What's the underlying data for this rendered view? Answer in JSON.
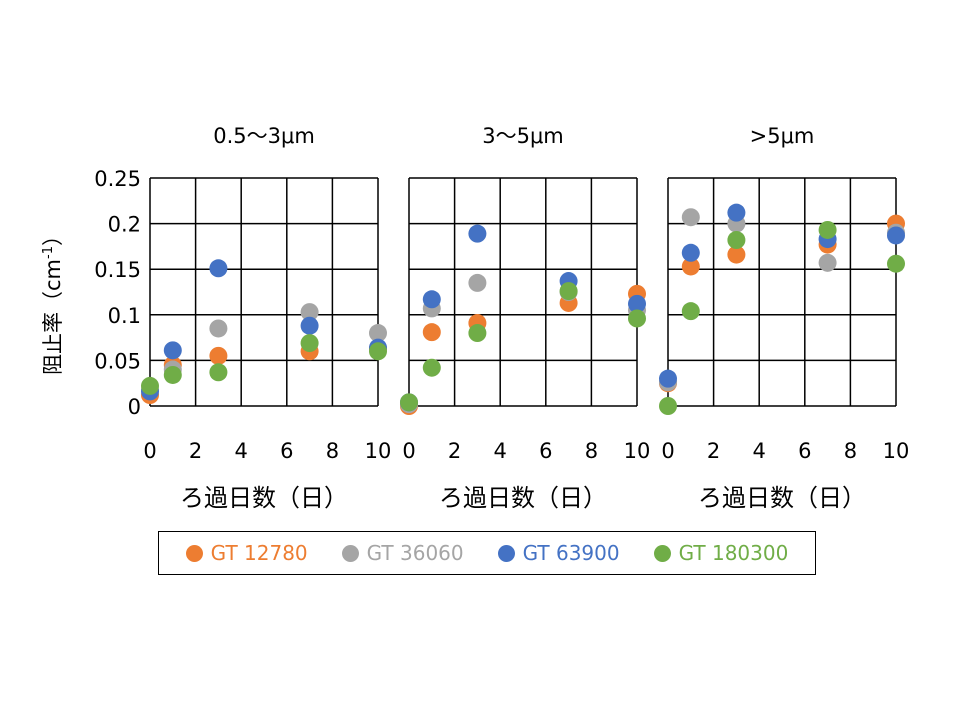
{
  "chart_data": {
    "type": "scatter",
    "ylabel": "阻止率（cm",
    "ylabel_sup": "-1",
    "ylabel_close": "）",
    "ylim": [
      0,
      0.25
    ],
    "yticks": [
      "0",
      "0.05",
      "0.1",
      "0.15",
      "0.2",
      "0.25"
    ],
    "grid": true,
    "legend_position": "bottom",
    "series_meta": [
      {
        "name": "GT 12780",
        "color": "#ED7D31"
      },
      {
        "name": "GT 36060",
        "color": "#A5A5A5"
      },
      {
        "name": "GT 63900",
        "color": "#4472C4"
      },
      {
        "name": "GT 180300",
        "color": "#70AD47"
      }
    ],
    "panels": [
      {
        "title": "0.5～3μm",
        "xlabel": "ろ過日数（日）",
        "xlim": [
          0,
          10
        ],
        "xticks": [
          "0",
          "2",
          "4",
          "6",
          "8",
          "10"
        ],
        "series": [
          {
            "name": "GT 12780",
            "x": [
              0,
              1,
              3,
              7,
              10
            ],
            "y": [
              0.012,
              0.045,
              0.055,
              0.06,
              0.063
            ]
          },
          {
            "name": "GT 36060",
            "x": [
              0,
              1,
              3,
              7,
              10
            ],
            "y": [
              0.018,
              0.04,
              0.085,
              0.103,
              0.08
            ]
          },
          {
            "name": "GT 63900",
            "x": [
              0,
              1,
              3,
              7,
              10
            ],
            "y": [
              0.016,
              0.061,
              0.151,
              0.088,
              0.064
            ]
          },
          {
            "name": "GT 180300",
            "x": [
              0,
              1,
              3,
              7,
              10
            ],
            "y": [
              0.022,
              0.034,
              0.037,
              0.069,
              0.06
            ]
          }
        ]
      },
      {
        "title": "3～5μm",
        "xlabel": "ろ過日数（日）",
        "xlim": [
          0,
          10
        ],
        "xticks": [
          "0",
          "2",
          "4",
          "6",
          "8",
          "10"
        ],
        "series": [
          {
            "name": "GT 12780",
            "x": [
              0,
              1,
              3,
              7,
              10
            ],
            "y": [
              0.0,
              0.081,
              0.091,
              0.113,
              0.123
            ]
          },
          {
            "name": "GT 36060",
            "x": [
              0,
              1,
              3,
              7,
              10
            ],
            "y": [
              0.002,
              0.107,
              0.135,
              0.125,
              0.105
            ]
          },
          {
            "name": "GT 63900",
            "x": [
              0,
              1,
              3,
              7,
              10
            ],
            "y": [
              0.004,
              0.117,
              0.189,
              0.137,
              0.112
            ]
          },
          {
            "name": "GT 180300",
            "x": [
              0,
              1,
              3,
              7,
              10
            ],
            "y": [
              0.004,
              0.042,
              0.08,
              0.126,
              0.096
            ]
          }
        ]
      },
      {
        "title": ">5μm",
        "xlabel": "ろ過日数（日）",
        "xlim": [
          0,
          10
        ],
        "xticks": [
          "0",
          "2",
          "4",
          "6",
          "8",
          "10"
        ],
        "series": [
          {
            "name": "GT 12780",
            "x": [
              0,
              1,
              3,
              7,
              10
            ],
            "y": [
              0.025,
              0.153,
              0.166,
              0.177,
              0.2
            ]
          },
          {
            "name": "GT 36060",
            "x": [
              0,
              1,
              3,
              7,
              10
            ],
            "y": [
              0.026,
              0.207,
              0.2,
              0.157,
              0.19
            ]
          },
          {
            "name": "GT 63900",
            "x": [
              0,
              1,
              3,
              7,
              10
            ],
            "y": [
              0.03,
              0.168,
              0.212,
              0.183,
              0.187
            ]
          },
          {
            "name": "GT 180300",
            "x": [
              0,
              1,
              3,
              7,
              10
            ],
            "y": [
              0.0,
              0.104,
              0.182,
              0.193,
              0.156
            ]
          }
        ]
      }
    ]
  }
}
